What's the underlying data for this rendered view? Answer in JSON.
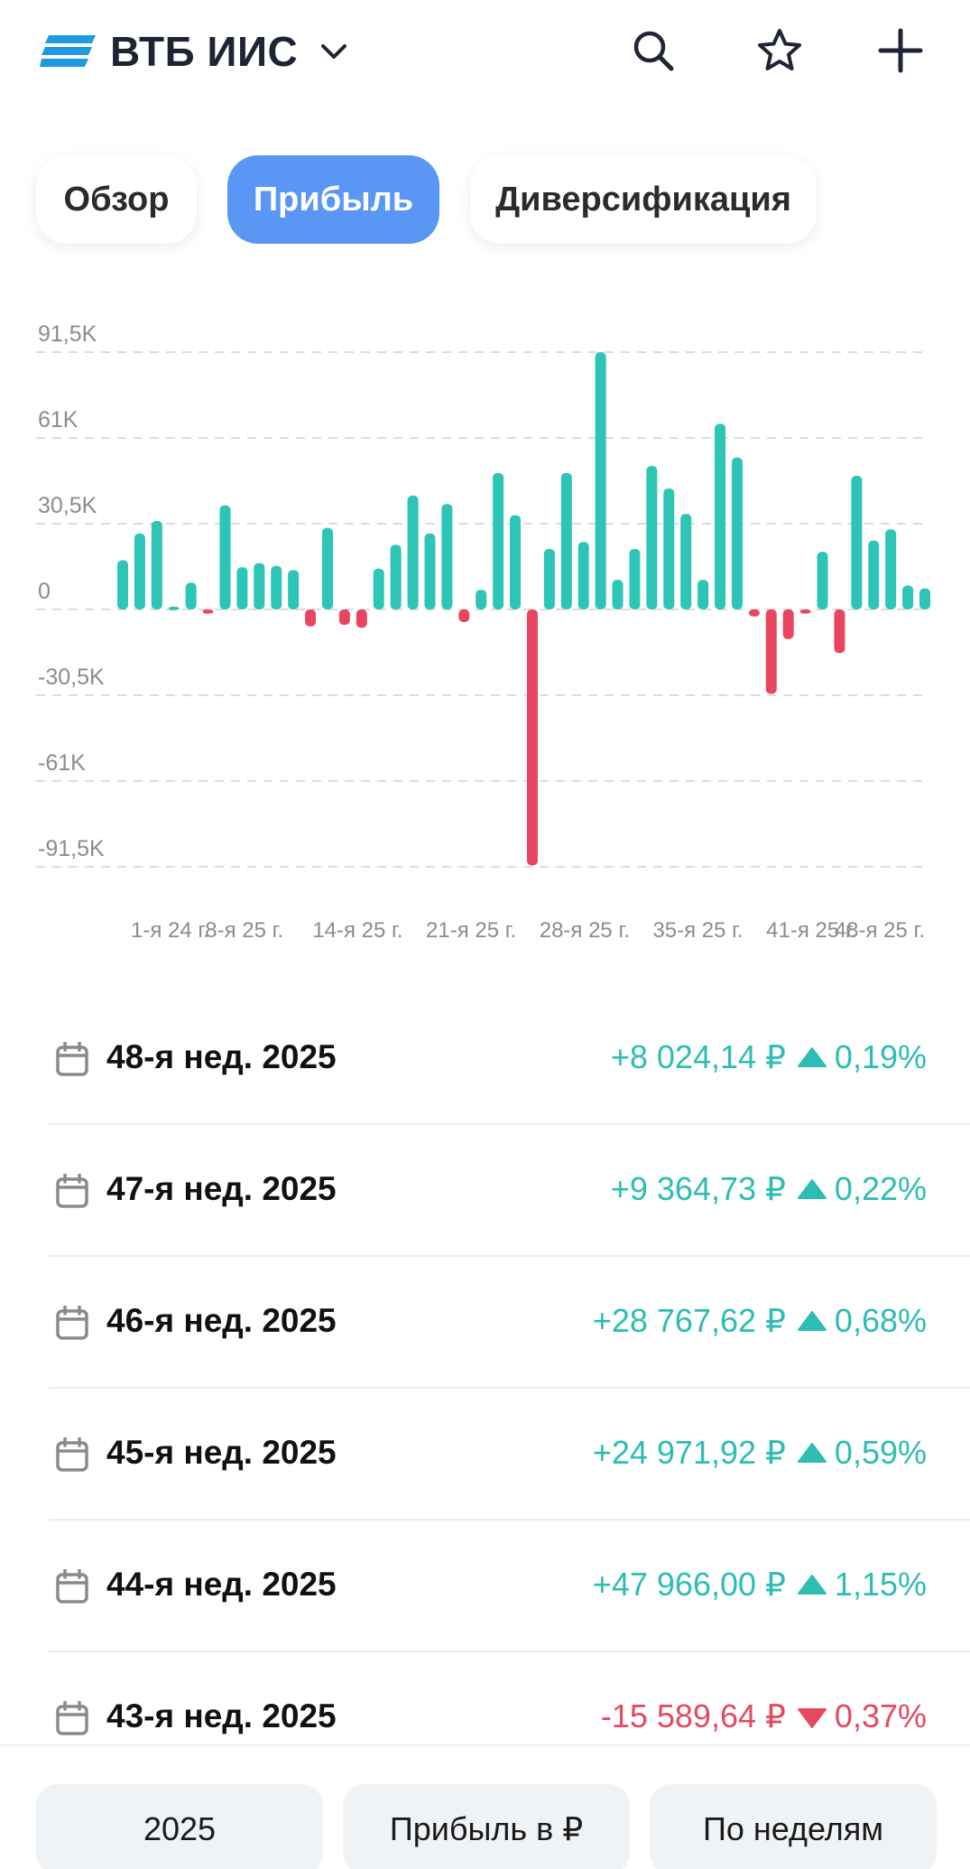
{
  "header": {
    "title": "ВТБ ИИС",
    "logo_icon": "vtb-logo-icon",
    "chevron_icon": "chevron-down-icon",
    "actions": [
      {
        "name": "search-button",
        "icon": "search-icon"
      },
      {
        "name": "favorite-button",
        "icon": "star-icon"
      },
      {
        "name": "add-button",
        "icon": "plus-icon"
      }
    ]
  },
  "tabs": [
    {
      "label": "Обзор",
      "active": false
    },
    {
      "label": "Прибыль",
      "active": true
    },
    {
      "label": "Диверсификация",
      "active": false
    }
  ],
  "chart_data": {
    "type": "bar",
    "y_ticks": [
      "91,5K",
      "61K",
      "30,5K",
      "0",
      "-30,5K",
      "-61K",
      "-91,5K"
    ],
    "ylim": [
      -91500,
      91500
    ],
    "x_tick_labels": [
      "1-я 24 г.",
      "8-я 25 г.",
      "14-я 25 г.",
      "21-я 25 г.",
      "28-я 25 г.",
      "35-я 25 г.",
      "41-я 25 г.",
      "48-я 25 г."
    ],
    "grid": true,
    "colors": {
      "positive": "#2dc5b6",
      "negative": "#e8465f"
    },
    "values": [
      17500,
      27000,
      31500,
      1000,
      9500,
      -1500,
      37000,
      15000,
      16500,
      15500,
      14000,
      -6000,
      29000,
      -5500,
      -6500,
      14500,
      23000,
      40500,
      27000,
      37500,
      -4500,
      7000,
      48500,
      33500,
      -91000,
      21500,
      48500,
      24000,
      91500,
      10500,
      21500,
      51000,
      43000,
      34000,
      10500,
      66000,
      54000,
      -2500,
      -30000,
      -10500,
      -1500,
      20500,
      -15500,
      47500,
      24500,
      28500,
      8500,
      7500
    ]
  },
  "rows": [
    {
      "label": "48-я нед. 2025",
      "amount": "+8 024,14 ₽",
      "percent": "0,19%",
      "direction": "up"
    },
    {
      "label": "47-я нед. 2025",
      "amount": "+9 364,73 ₽",
      "percent": "0,22%",
      "direction": "up"
    },
    {
      "label": "46-я нед. 2025",
      "amount": "+28 767,62 ₽",
      "percent": "0,68%",
      "direction": "up"
    },
    {
      "label": "45-я нед. 2025",
      "amount": "+24 971,92 ₽",
      "percent": "0,59%",
      "direction": "up"
    },
    {
      "label": "44-я нед. 2025",
      "amount": "+47 966,00 ₽",
      "percent": "1,15%",
      "direction": "up"
    },
    {
      "label": "43-я нед. 2025",
      "amount": "-15 589,64 ₽",
      "percent": "0,37%",
      "direction": "down"
    }
  ],
  "bottom_bar": {
    "year": "2025",
    "metric": "Прибыль в ₽",
    "period": "По неделям"
  }
}
